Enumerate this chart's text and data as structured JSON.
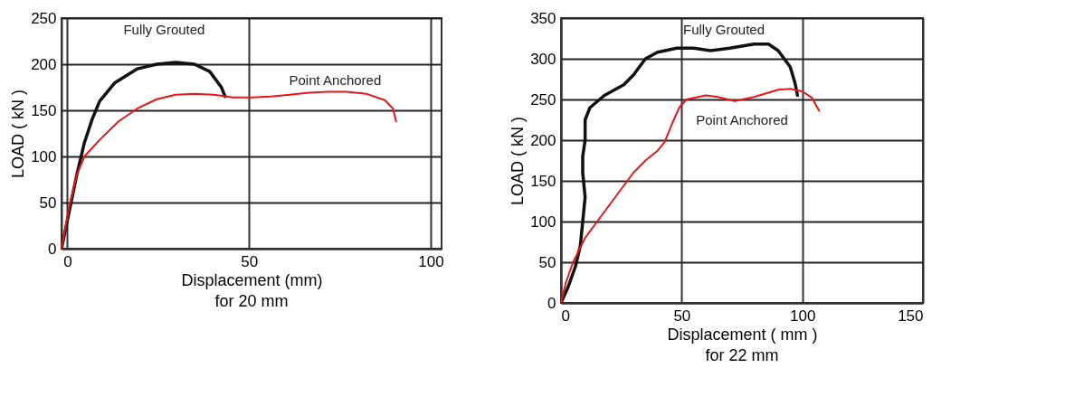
{
  "chart_data": [
    {
      "type": "line",
      "xlabel": "Displacement (mm)",
      "ylabel": "LOAD ( kN )",
      "xlim": [
        -1.6,
        103
      ],
      "ylim": [
        0,
        250
      ],
      "xticks": [
        0,
        50,
        100
      ],
      "yticks": [
        0,
        50,
        100,
        150,
        200,
        250
      ],
      "grid": true,
      "annotations": [
        "Fully Grouted",
        "Point Anchored",
        "for 20 mm"
      ],
      "series": [
        {
          "color": "#111111",
          "x": [
            -1.6,
            0.5,
            2.6,
            4.7,
            6.8,
            8.9,
            13.1,
            19.3,
            24.6,
            29.8,
            35.0,
            39.2,
            42.4,
            43.4
          ],
          "values": [
            0,
            40,
            80,
            115,
            140,
            160,
            180,
            195,
            200,
            202,
            200,
            192,
            175,
            165
          ]
        },
        {
          "color": "#e8161b",
          "x": [
            -1.6,
            0.5,
            2.6,
            4.7,
            8.9,
            14.1,
            19.3,
            24.6,
            29.8,
            35.0,
            40.3,
            45.5,
            50.8,
            56.0,
            61.2,
            66.5,
            71.7,
            76.9,
            82.2,
            87.4,
            89.6,
            90.5
          ],
          "values": [
            0,
            45,
            80,
            100,
            118,
            138,
            152,
            162,
            167,
            168,
            167,
            164,
            164,
            165,
            167,
            169,
            170,
            170,
            168,
            161,
            152,
            138
          ]
        }
      ]
    },
    {
      "type": "line",
      "xlabel": "Displacement ( mm )",
      "ylabel": "LOAD ( kN )",
      "xlim": [
        0,
        150
      ],
      "ylim": [
        0,
        350
      ],
      "xticks": [
        0,
        50,
        100,
        150
      ],
      "yticks": [
        0,
        50,
        100,
        150,
        200,
        250,
        300,
        350
      ],
      "grid": true,
      "annotations": [
        "Fully Grouted",
        "Point Anchored",
        "for 22 mm"
      ],
      "series": [
        {
          "color": "#111111",
          "x": [
            0,
            3,
            6,
            8,
            9,
            10,
            9,
            9,
            10,
            10,
            12,
            18,
            26,
            30,
            35,
            40,
            48,
            55,
            62,
            70,
            80,
            86,
            90,
            95,
            97,
            98
          ],
          "values": [
            0,
            20,
            45,
            70,
            100,
            130,
            160,
            180,
            200,
            225,
            240,
            255,
            268,
            280,
            300,
            308,
            313,
            313,
            310,
            313,
            318,
            318,
            310,
            290,
            270,
            255
          ]
        },
        {
          "color": "#e8161b",
          "x": [
            0,
            2,
            5,
            10,
            15,
            20,
            25,
            30,
            35,
            40,
            43,
            46,
            49,
            52,
            60,
            65,
            72,
            80,
            90,
            95,
            100,
            104,
            107
          ],
          "values": [
            0,
            25,
            50,
            80,
            100,
            120,
            140,
            160,
            175,
            187,
            198,
            220,
            240,
            250,
            255,
            253,
            248,
            253,
            262,
            263,
            260,
            252,
            236
          ]
        }
      ]
    }
  ]
}
